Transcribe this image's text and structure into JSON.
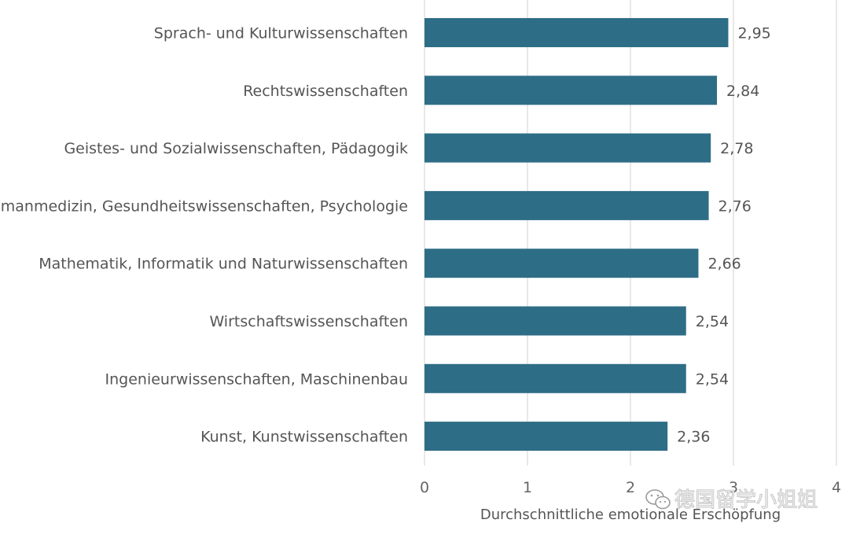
{
  "chart_data": {
    "type": "bar",
    "orientation": "horizontal",
    "categories": [
      "Sprach- und Kulturwissenschaften",
      "Rechtswissenschaften",
      "Geistes- und Sozialwissenschaften, Pädagogik",
      "Humanmedizin, Gesundheitswissenschaften, Psychologie",
      "Mathematik, Informatik und Naturwissenschaften",
      "Wirtschaftswissenschaften",
      "Ingenieurwissenschaften, Maschinenbau",
      "Kunst, Kunstwissenschaften"
    ],
    "values": [
      2.95,
      2.84,
      2.78,
      2.76,
      2.66,
      2.54,
      2.54,
      2.36
    ],
    "value_labels": [
      "2,95",
      "2,84",
      "2,78",
      "2,76",
      "2,66",
      "2,54",
      "2,54",
      "2,36"
    ],
    "xlabel": "Durchschnittliche emotionale Erschöpfung",
    "xlim": [
      0,
      4
    ],
    "xticks": [
      "0",
      "1",
      "2",
      "3",
      "4"
    ],
    "grid": "vertical",
    "bar_color": "#2e6d86"
  },
  "watermark": {
    "text": "德国留学小姐姐",
    "icon": "wechat-icon"
  }
}
